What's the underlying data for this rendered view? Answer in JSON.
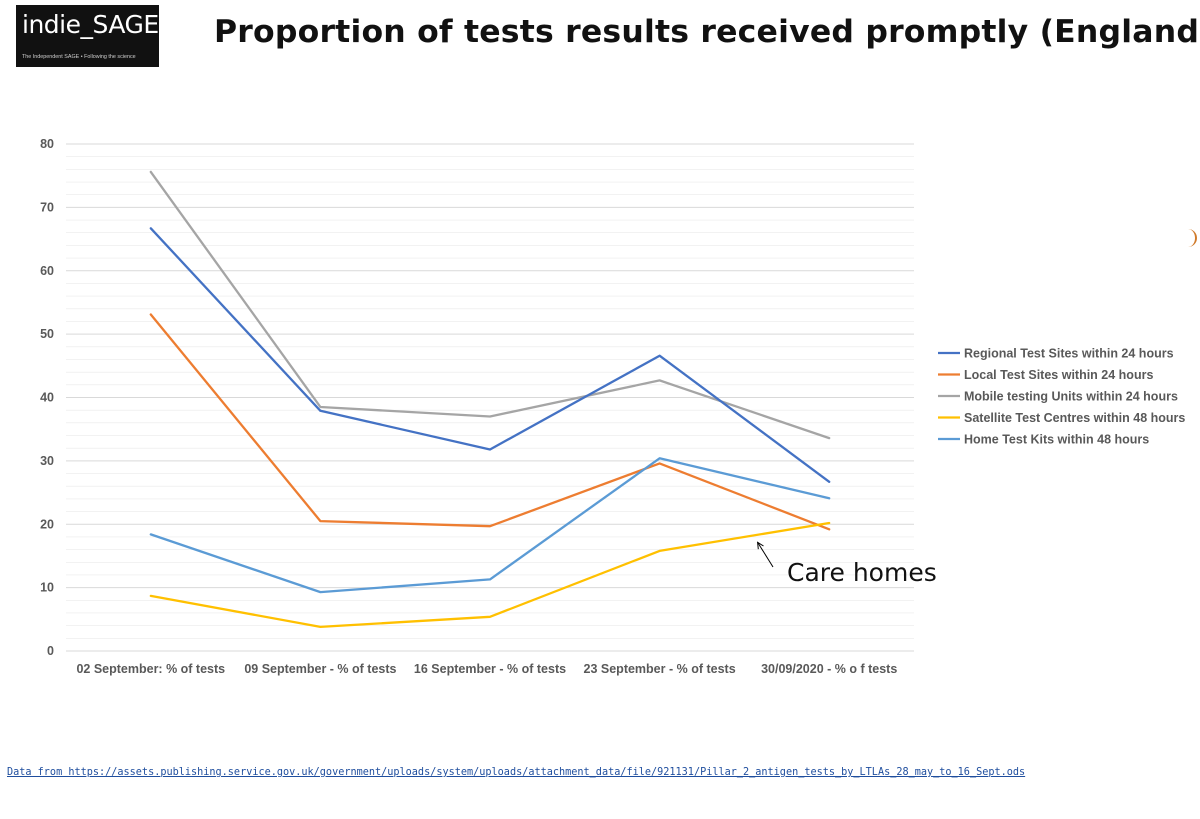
{
  "header": {
    "logo_text": "indie_SAGE",
    "logo_tagline": "The Independent SAGE • Following the science",
    "title": "Proportion of tests results received promptly (England)"
  },
  "footer": {
    "source_text": "Data from https://assets.publishing.service.gov.uk/government/uploads/system/uploads/attachment_data/file/921131/Pillar_2_antigen_tests_by_LTLAs_28_may_to_16_Sept.ods"
  },
  "colors": {
    "gridline": "#d9d9d9",
    "axis_text": "#595959"
  },
  "chart_data": {
    "type": "line",
    "title": "",
    "xlabel": "",
    "ylabel": "",
    "ylim": [
      0,
      80
    ],
    "y_major_ticks": [
      0,
      10,
      20,
      30,
      40,
      50,
      60,
      70,
      80
    ],
    "grid": true,
    "legend_position": "right",
    "categories": [
      "02 September: % of tests",
      "09 September - % of tests",
      "16 September - % of tests",
      "23 September - % of tests",
      "30/09/2020 - % o f tests"
    ],
    "series": [
      {
        "name": "Regional Test Sites within 24 hours",
        "color": "#4472c4",
        "values": [
          66.7,
          37.9,
          31.8,
          46.6,
          26.7
        ]
      },
      {
        "name": "Local Test Sites within 24 hours",
        "color": "#ed7d31",
        "values": [
          53.1,
          20.5,
          19.7,
          29.6,
          19.2
        ]
      },
      {
        "name": "Mobile testing Units within 24 hours",
        "color": "#a5a5a5",
        "values": [
          75.6,
          38.5,
          37.0,
          42.7,
          33.6
        ]
      },
      {
        "name": "Satellite Test Centres within 48 hours",
        "color": "#ffc000",
        "values": [
          8.7,
          3.8,
          5.4,
          15.8,
          20.2
        ]
      },
      {
        "name": "Home Test Kits within 48 hours",
        "color": "#5b9bd5",
        "values": [
          18.4,
          9.3,
          11.3,
          30.4,
          24.1
        ]
      }
    ],
    "annotation": {
      "text": "Care homes",
      "series_index": 3,
      "category_index": 4
    }
  }
}
